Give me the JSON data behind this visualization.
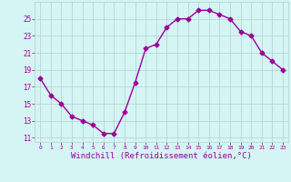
{
  "x": [
    0,
    1,
    2,
    3,
    4,
    5,
    6,
    7,
    8,
    9,
    10,
    11,
    12,
    13,
    14,
    15,
    16,
    17,
    18,
    19,
    20,
    21,
    22,
    23
  ],
  "y": [
    18,
    16,
    15,
    13.5,
    13,
    12.5,
    11.5,
    11.5,
    14,
    17.5,
    21.5,
    22,
    24,
    25,
    25,
    26,
    26,
    25.5,
    25,
    23.5,
    23,
    21,
    20,
    19
  ],
  "line_color": "#990099",
  "marker": "D",
  "markersize": 2.5,
  "linewidth": 1.0,
  "xlabel": "Windchill (Refroidissement éolien,°C)",
  "xlabel_fontsize": 6.5,
  "ylabel_ticks": [
    11,
    13,
    15,
    17,
    19,
    21,
    23,
    25
  ],
  "ylim": [
    10.5,
    27
  ],
  "xlim": [
    -0.5,
    23.5
  ],
  "xtick_labels": [
    "0",
    "1",
    "2",
    "3",
    "4",
    "5",
    "6",
    "7",
    "8",
    "9",
    "10",
    "11",
    "12",
    "13",
    "14",
    "15",
    "16",
    "17",
    "18",
    "19",
    "20",
    "21",
    "22",
    "23"
  ],
  "background_color": "#d5f5f5",
  "grid_color": "#b0d0d0",
  "tick_color": "#990099",
  "label_color": "#990099"
}
